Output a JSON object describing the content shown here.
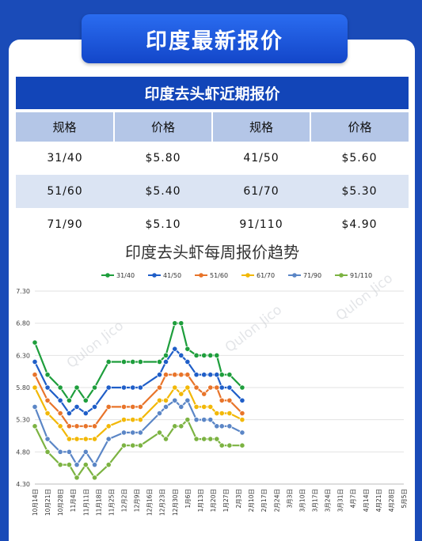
{
  "banner_title": "印度最新报价",
  "table": {
    "title": "印度去头虾近期报价",
    "headers": [
      "规格",
      "价格",
      "规格",
      "价格"
    ],
    "rows": [
      [
        "31/40",
        "$5.80",
        "41/50",
        "$5.60"
      ],
      [
        "51/60",
        "$5.40",
        "61/70",
        "$5.30"
      ],
      [
        "71/90",
        "$5.10",
        "91/110",
        "$4.90"
      ]
    ]
  },
  "chart_data": {
    "type": "line",
    "title": "印度去头虾每周报价趋势",
    "ylim": [
      4.3,
      7.3
    ],
    "yticks": [
      "7.30",
      "6.80",
      "6.30",
      "5.80",
      "5.30",
      "4.80",
      "4.30"
    ],
    "grid": true,
    "legend_position": "top",
    "watermark": "Qulon Jico",
    "x": [
      "10月14日",
      "10月21日",
      "10月28日",
      "11月4日",
      "11月11日",
      "11月18日",
      "11月25日",
      "12月2日",
      "12月9日",
      "12月16日",
      "12月23日",
      "12月30日",
      "1月6日",
      "1月13日",
      "1月20日",
      "1月27日",
      "2月3日",
      "2月10日",
      "2月17日",
      "2月24日",
      "3月3日",
      "3月10日",
      "3月17日",
      "3月24日",
      "3月31日",
      "4月7日",
      "4月14日",
      "4月21日",
      "4月28日",
      "5月5日"
    ],
    "series": [
      {
        "name": "31/40",
        "color": "#1e9e3c",
        "points": [
          [
            0,
            6.5
          ],
          [
            1,
            6.0
          ],
          [
            2,
            5.8
          ],
          [
            2.7,
            5.6
          ],
          [
            3.3,
            5.8
          ],
          [
            4,
            5.6
          ],
          [
            4.7,
            5.8
          ],
          [
            5.8,
            6.2
          ],
          [
            7,
            6.2
          ],
          [
            7.7,
            6.2
          ],
          [
            8.3,
            6.2
          ],
          [
            9.8,
            6.2
          ],
          [
            10.3,
            6.3
          ],
          [
            11,
            6.8
          ],
          [
            11.5,
            6.8
          ],
          [
            12,
            6.4
          ],
          [
            12.7,
            6.3
          ],
          [
            13.3,
            6.3
          ],
          [
            13.8,
            6.3
          ],
          [
            14.3,
            6.3
          ],
          [
            14.7,
            6.0
          ],
          [
            15.3,
            6.0
          ],
          [
            16.3,
            5.8
          ]
        ]
      },
      {
        "name": "41/50",
        "color": "#1f5ec8",
        "points": [
          [
            0,
            6.2
          ],
          [
            1,
            5.8
          ],
          [
            2,
            5.6
          ],
          [
            2.7,
            5.4
          ],
          [
            3.3,
            5.5
          ],
          [
            4,
            5.4
          ],
          [
            4.7,
            5.5
          ],
          [
            5.8,
            5.8
          ],
          [
            7,
            5.8
          ],
          [
            7.7,
            5.8
          ],
          [
            8.3,
            5.8
          ],
          [
            9.8,
            6.0
          ],
          [
            10.3,
            6.2
          ],
          [
            11,
            6.4
          ],
          [
            11.5,
            6.3
          ],
          [
            12,
            6.2
          ],
          [
            12.7,
            6.0
          ],
          [
            13.3,
            6.0
          ],
          [
            13.8,
            6.0
          ],
          [
            14.3,
            6.0
          ],
          [
            14.7,
            5.8
          ],
          [
            15.3,
            5.8
          ],
          [
            16.3,
            5.6
          ]
        ]
      },
      {
        "name": "51/60",
        "color": "#e8742a",
        "points": [
          [
            0,
            6.0
          ],
          [
            1,
            5.6
          ],
          [
            2,
            5.4
          ],
          [
            2.7,
            5.2
          ],
          [
            3.3,
            5.2
          ],
          [
            4,
            5.2
          ],
          [
            4.7,
            5.2
          ],
          [
            5.8,
            5.5
          ],
          [
            7,
            5.5
          ],
          [
            7.7,
            5.5
          ],
          [
            8.3,
            5.5
          ],
          [
            9.8,
            5.8
          ],
          [
            10.3,
            6.0
          ],
          [
            11,
            6.0
          ],
          [
            11.5,
            6.0
          ],
          [
            12,
            6.0
          ],
          [
            12.7,
            5.8
          ],
          [
            13.3,
            5.7
          ],
          [
            13.8,
            5.8
          ],
          [
            14.3,
            5.8
          ],
          [
            14.7,
            5.6
          ],
          [
            15.3,
            5.6
          ],
          [
            16.3,
            5.4
          ]
        ]
      },
      {
        "name": "61/70",
        "color": "#f2b807",
        "points": [
          [
            0,
            5.8
          ],
          [
            1,
            5.4
          ],
          [
            2,
            5.2
          ],
          [
            2.7,
            5.0
          ],
          [
            3.3,
            5.0
          ],
          [
            4,
            5.0
          ],
          [
            4.7,
            5.0
          ],
          [
            5.8,
            5.2
          ],
          [
            7,
            5.3
          ],
          [
            7.7,
            5.3
          ],
          [
            8.3,
            5.3
          ],
          [
            9.8,
            5.6
          ],
          [
            10.3,
            5.6
          ],
          [
            11,
            5.8
          ],
          [
            11.5,
            5.7
          ],
          [
            12,
            5.8
          ],
          [
            12.7,
            5.5
          ],
          [
            13.3,
            5.5
          ],
          [
            13.8,
            5.5
          ],
          [
            14.3,
            5.4
          ],
          [
            14.7,
            5.4
          ],
          [
            15.3,
            5.4
          ],
          [
            16.3,
            5.3
          ]
        ]
      },
      {
        "name": "71/90",
        "color": "#5b86c6",
        "points": [
          [
            0,
            5.5
          ],
          [
            1,
            5.0
          ],
          [
            2,
            4.8
          ],
          [
            2.7,
            4.8
          ],
          [
            3.3,
            4.6
          ],
          [
            4,
            4.8
          ],
          [
            4.7,
            4.6
          ],
          [
            5.8,
            5.0
          ],
          [
            7,
            5.1
          ],
          [
            7.7,
            5.1
          ],
          [
            8.3,
            5.1
          ],
          [
            9.8,
            5.4
          ],
          [
            10.3,
            5.5
          ],
          [
            11,
            5.6
          ],
          [
            11.5,
            5.5
          ],
          [
            12,
            5.6
          ],
          [
            12.7,
            5.3
          ],
          [
            13.3,
            5.3
          ],
          [
            13.8,
            5.3
          ],
          [
            14.3,
            5.2
          ],
          [
            14.7,
            5.2
          ],
          [
            15.3,
            5.2
          ],
          [
            16.3,
            5.1
          ]
        ]
      },
      {
        "name": "91/110",
        "color": "#7cb342",
        "points": [
          [
            0,
            5.2
          ],
          [
            1,
            4.8
          ],
          [
            2,
            4.6
          ],
          [
            2.7,
            4.6
          ],
          [
            3.3,
            4.4
          ],
          [
            4,
            4.6
          ],
          [
            4.7,
            4.4
          ],
          [
            5.8,
            4.6
          ],
          [
            7,
            4.9
          ],
          [
            7.7,
            4.9
          ],
          [
            8.3,
            4.9
          ],
          [
            9.8,
            5.1
          ],
          [
            10.3,
            5.0
          ],
          [
            11,
            5.2
          ],
          [
            11.5,
            5.2
          ],
          [
            12,
            5.3
          ],
          [
            12.7,
            5.0
          ],
          [
            13.3,
            5.0
          ],
          [
            13.8,
            5.0
          ],
          [
            14.3,
            5.0
          ],
          [
            14.7,
            4.9
          ],
          [
            15.3,
            4.9
          ],
          [
            16.3,
            4.9
          ]
        ]
      }
    ]
  }
}
